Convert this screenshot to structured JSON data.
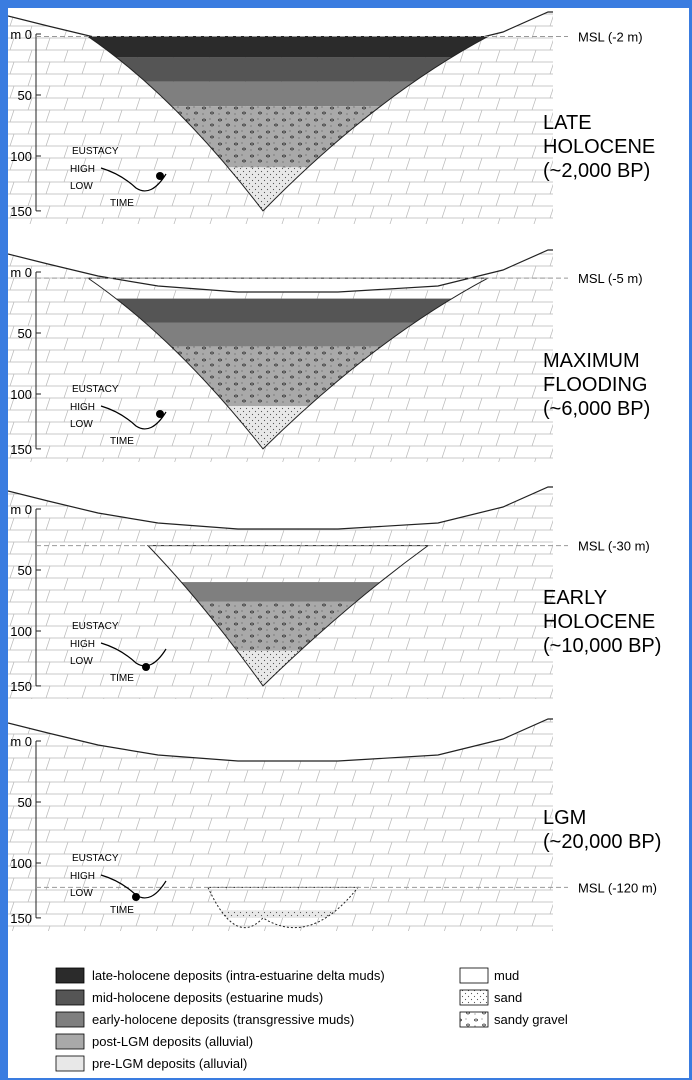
{
  "axis": {
    "ticks": [
      "m 0",
      "50",
      "100",
      "150"
    ]
  },
  "inset": {
    "title": "EUSTACY",
    "high": "HIGH",
    "low": "LOW",
    "time": "TIME"
  },
  "panels": [
    {
      "key": "late",
      "msl_label": "MSL (-2 m)",
      "msl_depth_m": 2,
      "name_lines": [
        "LATE",
        "HOLOCENE",
        "(~2,000 BP)"
      ]
    },
    {
      "key": "max",
      "msl_label": "MSL (-5 m)",
      "msl_depth_m": 5,
      "name_lines": [
        "MAXIMUM",
        "FLOODING",
        "(~6,000 BP)"
      ]
    },
    {
      "key": "early",
      "msl_label": "MSL (-30 m)",
      "msl_depth_m": 30,
      "name_lines": [
        "EARLY",
        "HOLOCENE",
        "(~10,000 BP)"
      ]
    },
    {
      "key": "lgm",
      "msl_label": "MSL (-120 m)",
      "msl_depth_m": 120,
      "name_lines": [
        "LGM",
        "(~20,000 BP)"
      ]
    }
  ],
  "legend": {
    "units": [
      {
        "label": "late-holocene deposits (intra-estuarine delta muds)",
        "color": "#2b2b2b"
      },
      {
        "label": "mid-holocene deposits (estuarine muds)",
        "color": "#555555"
      },
      {
        "label": "early-holocene deposits (transgressive muds)",
        "color": "#7f7f7f"
      },
      {
        "label": "post-LGM deposits (alluvial)",
        "color": "#a9a9a9"
      },
      {
        "label": "pre-LGM deposits (alluvial)",
        "color": "#e8e8e8"
      }
    ],
    "lithology": [
      {
        "label": "mud",
        "pattern": "plain"
      },
      {
        "label": "sand",
        "pattern": "dots"
      },
      {
        "label": "sandy gravel",
        "pattern": "gravel"
      }
    ]
  }
}
